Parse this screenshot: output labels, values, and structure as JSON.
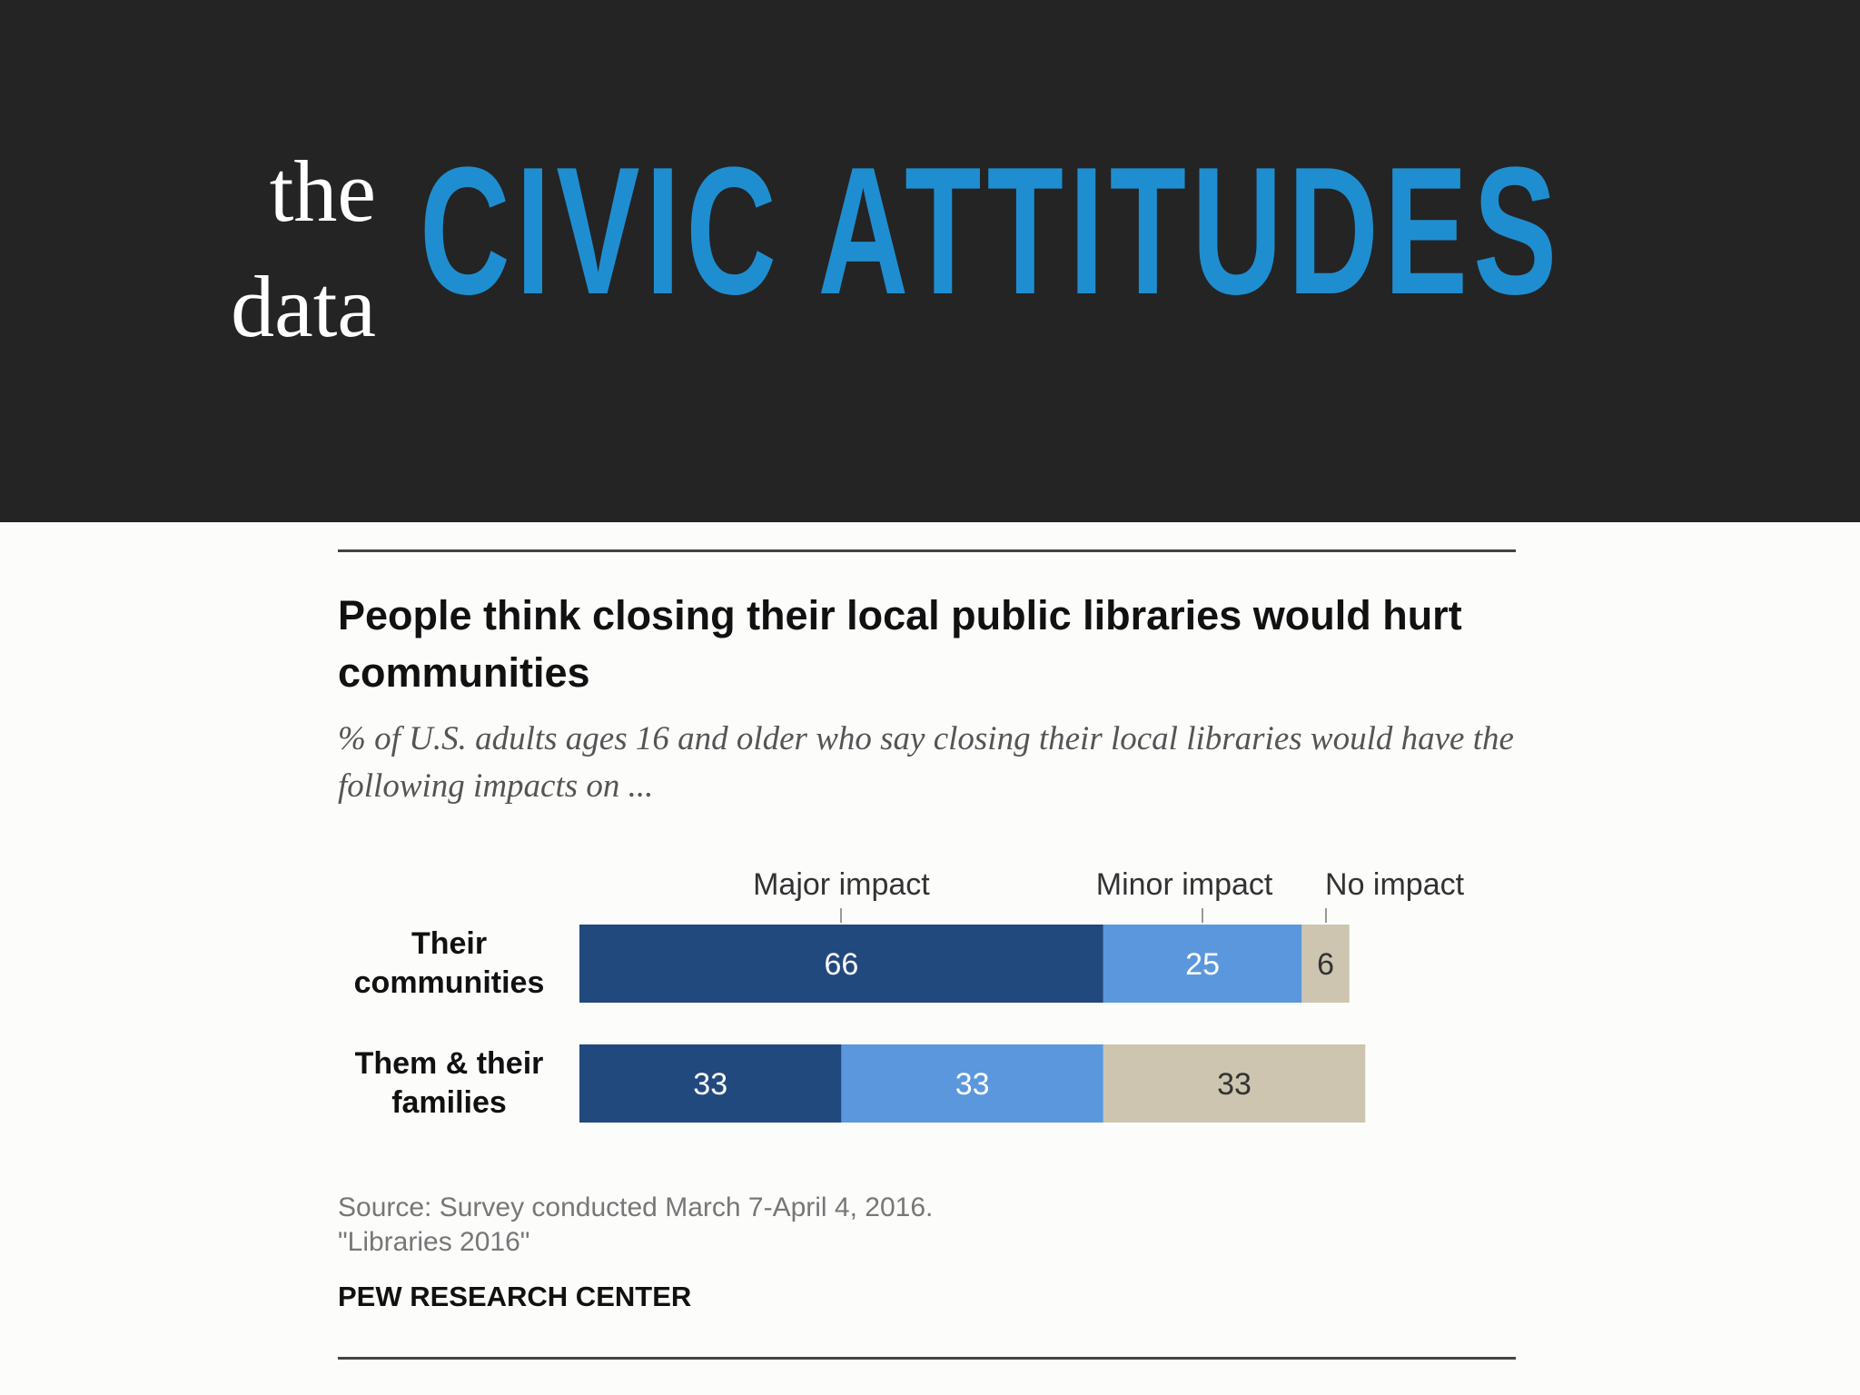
{
  "header": {
    "kicker_line1": "the",
    "kicker_line2": "data",
    "title": "CIVIC ATTITUDES"
  },
  "chart_data": {
    "type": "bar",
    "orientation": "horizontal",
    "stacked": true,
    "title": "People think closing their local public libraries would hurt communities",
    "subtitle": "% of U.S. adults ages 16 and older who say closing their local libraries would have the following impacts on ...",
    "categories": [
      "Their communities",
      "Them & their families"
    ],
    "category_lines": [
      [
        "Their",
        "communities"
      ],
      [
        "Them & their",
        "families"
      ]
    ],
    "series": [
      {
        "name": "Major impact",
        "values": [
          66,
          33
        ],
        "color": "#22497e",
        "label_color": "#ffffff"
      },
      {
        "name": "Minor impact",
        "values": [
          25,
          33
        ],
        "color": "#5b97dd",
        "label_color": "#ffffff"
      },
      {
        "name": "No impact",
        "values": [
          6,
          33
        ],
        "color": "#cdc5af",
        "label_color": "#333333"
      }
    ],
    "legend": "top",
    "grid": false,
    "xlim": [
      0,
      100
    ]
  },
  "footer": {
    "source_line1": "Source: Survey conducted March 7-April 4, 2016.",
    "source_line2": "\"Libraries 2016\"",
    "brand": "PEW RESEARCH CENTER"
  }
}
